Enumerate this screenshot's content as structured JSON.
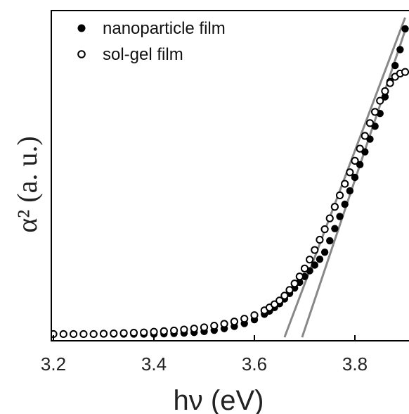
{
  "chart_data": {
    "type": "scatter",
    "xlabel": "hν (eV)",
    "ylabel": "α² (a. u.)",
    "xlim": [
      3.2,
      3.9
    ],
    "ylim": [
      0,
      1
    ],
    "xticks": [
      "3.2",
      "3.4",
      "3.6",
      "3.8"
    ],
    "yticks_shown": false,
    "legend_position": "top-left",
    "series": [
      {
        "name": "nanoparticle film",
        "marker": "filled-circle",
        "color": "#000000",
        "x": [
          3.2,
          3.22,
          3.24,
          3.26,
          3.28,
          3.3,
          3.32,
          3.34,
          3.36,
          3.38,
          3.4,
          3.42,
          3.44,
          3.46,
          3.48,
          3.5,
          3.52,
          3.54,
          3.56,
          3.58,
          3.6,
          3.62,
          3.63,
          3.64,
          3.65,
          3.66,
          3.67,
          3.68,
          3.69,
          3.7,
          3.71,
          3.72,
          3.73,
          3.74,
          3.75,
          3.76,
          3.77,
          3.78,
          3.79,
          3.8,
          3.81,
          3.82,
          3.83,
          3.84,
          3.85,
          3.86,
          3.87,
          3.88,
          3.89,
          3.9
        ],
        "y": [
          0.01,
          0.01,
          0.01,
          0.01,
          0.01,
          0.01,
          0.01,
          0.01,
          0.01,
          0.01,
          0.01,
          0.011,
          0.012,
          0.013,
          0.015,
          0.018,
          0.022,
          0.027,
          0.034,
          0.043,
          0.055,
          0.072,
          0.082,
          0.093,
          0.105,
          0.12,
          0.137,
          0.154,
          0.172,
          0.19,
          0.208,
          0.226,
          0.244,
          0.266,
          0.302,
          0.34,
          0.378,
          0.416,
          0.458,
          0.5,
          0.54,
          0.58,
          0.62,
          0.66,
          0.7,
          0.752,
          0.8,
          0.85,
          0.9,
          0.965
        ]
      },
      {
        "name": "sol-gel film",
        "marker": "open-circle",
        "color": "#000000",
        "x": [
          3.2,
          3.22,
          3.24,
          3.26,
          3.28,
          3.3,
          3.32,
          3.34,
          3.36,
          3.38,
          3.4,
          3.42,
          3.44,
          3.46,
          3.48,
          3.5,
          3.52,
          3.54,
          3.56,
          3.58,
          3.6,
          3.62,
          3.63,
          3.64,
          3.65,
          3.66,
          3.67,
          3.68,
          3.69,
          3.7,
          3.71,
          3.72,
          3.73,
          3.74,
          3.75,
          3.76,
          3.77,
          3.78,
          3.79,
          3.8,
          3.81,
          3.82,
          3.83,
          3.84,
          3.85,
          3.86,
          3.87,
          3.88,
          3.89,
          3.9
        ],
        "y": [
          0.01,
          0.01,
          0.01,
          0.01,
          0.01,
          0.011,
          0.012,
          0.013,
          0.014,
          0.015,
          0.017,
          0.019,
          0.021,
          0.024,
          0.027,
          0.031,
          0.036,
          0.042,
          0.049,
          0.058,
          0.069,
          0.084,
          0.093,
          0.103,
          0.115,
          0.13,
          0.148,
          0.168,
          0.19,
          0.215,
          0.243,
          0.273,
          0.305,
          0.338,
          0.372,
          0.408,
          0.444,
          0.48,
          0.516,
          0.552,
          0.59,
          0.63,
          0.67,
          0.705,
          0.74,
          0.77,
          0.795,
          0.815,
          0.825,
          0.83
        ]
      }
    ],
    "fit_lines": [
      {
        "color": "#888888",
        "x": [
          3.66,
          3.9
        ],
        "y": [
          0.0,
          1.0
        ]
      },
      {
        "color": "#888888",
        "x": [
          3.695,
          3.9
        ],
        "y": [
          0.0,
          0.96
        ]
      }
    ]
  }
}
